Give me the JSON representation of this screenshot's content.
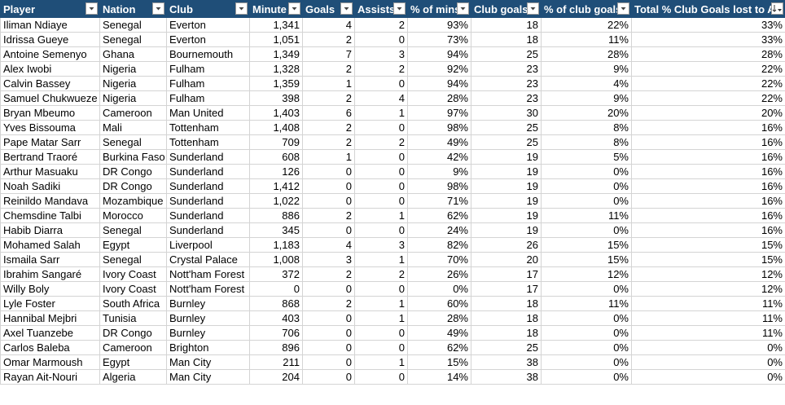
{
  "table": {
    "headers": [
      "Player",
      "Nation",
      "Club",
      "Minute",
      "Goals",
      "Assists",
      "% of mins",
      "Club goals",
      "% of club goals",
      "Total % Club Goals lost to A"
    ],
    "rows": [
      [
        "Iliman Ndiaye",
        "Senegal",
        "Everton",
        "1,341",
        "4",
        "2",
        "93%",
        "18",
        "22%",
        "33%"
      ],
      [
        "Idrissa Gueye",
        "Senegal",
        "Everton",
        "1,051",
        "2",
        "0",
        "73%",
        "18",
        "11%",
        "33%"
      ],
      [
        "Antoine Semenyo",
        "Ghana",
        "Bournemouth",
        "1,349",
        "7",
        "3",
        "94%",
        "25",
        "28%",
        "28%"
      ],
      [
        "Alex Iwobi",
        "Nigeria",
        "Fulham",
        "1,328",
        "2",
        "2",
        "92%",
        "23",
        "9%",
        "22%"
      ],
      [
        "Calvin Bassey",
        "Nigeria",
        "Fulham",
        "1,359",
        "1",
        "0",
        "94%",
        "23",
        "4%",
        "22%"
      ],
      [
        "Samuel Chukwueze",
        "Nigeria",
        "Fulham",
        "398",
        "2",
        "4",
        "28%",
        "23",
        "9%",
        "22%"
      ],
      [
        "Bryan Mbeumo",
        "Cameroon",
        "Man United",
        "1,403",
        "6",
        "1",
        "97%",
        "30",
        "20%",
        "20%"
      ],
      [
        "Yves Bissouma",
        "Mali",
        "Tottenham",
        "1,408",
        "2",
        "0",
        "98%",
        "25",
        "8%",
        "16%"
      ],
      [
        "Pape Matar Sarr",
        "Senegal",
        "Tottenham",
        "709",
        "2",
        "2",
        "49%",
        "25",
        "8%",
        "16%"
      ],
      [
        "Bertrand Traoré",
        "Burkina Faso",
        "Sunderland",
        "608",
        "1",
        "0",
        "42%",
        "19",
        "5%",
        "16%"
      ],
      [
        "Arthur Masuaku",
        "DR Congo",
        "Sunderland",
        "126",
        "0",
        "0",
        "9%",
        "19",
        "0%",
        "16%"
      ],
      [
        "Noah Sadiki",
        "DR Congo",
        "Sunderland",
        "1,412",
        "0",
        "0",
        "98%",
        "19",
        "0%",
        "16%"
      ],
      [
        "Reinildo Mandava",
        "Mozambique",
        "Sunderland",
        "1,022",
        "0",
        "0",
        "71%",
        "19",
        "0%",
        "16%"
      ],
      [
        "Chemsdine Talbi",
        "Morocco",
        "Sunderland",
        "886",
        "2",
        "1",
        "62%",
        "19",
        "11%",
        "16%"
      ],
      [
        "Habib Diarra",
        "Senegal",
        "Sunderland",
        "345",
        "0",
        "0",
        "24%",
        "19",
        "0%",
        "16%"
      ],
      [
        "Mohamed Salah",
        "Egypt",
        "Liverpool",
        "1,183",
        "4",
        "3",
        "82%",
        "26",
        "15%",
        "15%"
      ],
      [
        "Ismaila Sarr",
        "Senegal",
        "Crystal Palace",
        "1,008",
        "3",
        "1",
        "70%",
        "20",
        "15%",
        "15%"
      ],
      [
        "Ibrahim Sangaré",
        "Ivory Coast",
        "Nott'ham Forest",
        "372",
        "2",
        "2",
        "26%",
        "17",
        "12%",
        "12%"
      ],
      [
        "Willy Boly",
        "Ivory Coast",
        "Nott'ham Forest",
        "0",
        "0",
        "0",
        "0%",
        "17",
        "0%",
        "12%"
      ],
      [
        "Lyle Foster",
        "South Africa",
        "Burnley",
        "868",
        "2",
        "1",
        "60%",
        "18",
        "11%",
        "11%"
      ],
      [
        "Hannibal Mejbri",
        "Tunisia",
        "Burnley",
        "403",
        "0",
        "1",
        "28%",
        "18",
        "0%",
        "11%"
      ],
      [
        "Axel Tuanzebe",
        "DR Congo",
        "Burnley",
        "706",
        "0",
        "0",
        "49%",
        "18",
        "0%",
        "11%"
      ],
      [
        "Carlos Baleba",
        "Cameroon",
        "Brighton",
        "896",
        "0",
        "0",
        "62%",
        "25",
        "0%",
        "0%"
      ],
      [
        "Omar Marmoush",
        "Egypt",
        "Man City",
        "211",
        "0",
        "1",
        "15%",
        "38",
        "0%",
        "0%"
      ],
      [
        "Rayan Ait-Nouri",
        "Algeria",
        "Man City",
        "204",
        "0",
        "0",
        "14%",
        "38",
        "0%",
        "0%"
      ]
    ]
  }
}
